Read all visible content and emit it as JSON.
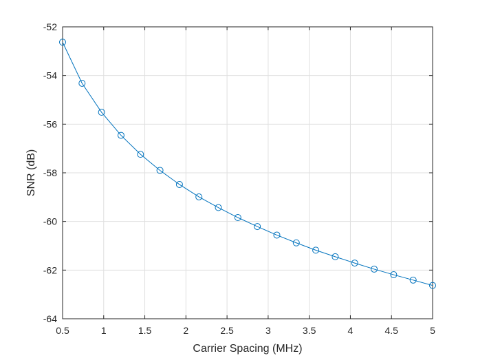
{
  "chart_data": {
    "type": "line",
    "title": "",
    "xlabel": "Carrier Spacing (MHz)",
    "ylabel": "SNR (dB)",
    "xlim": [
      0.5,
      5
    ],
    "ylim": [
      -64,
      -52
    ],
    "xticks": [
      "0.5",
      "1",
      "1.5",
      "2",
      "2.5",
      "3",
      "3.5",
      "4",
      "4.5",
      "5"
    ],
    "yticks": [
      "-64",
      "-62",
      "-60",
      "-58",
      "-56",
      "-54",
      "-52"
    ],
    "grid": true,
    "marker": "circle",
    "line_color": "#0072BD",
    "series": [
      {
        "x": [
          0.5,
          0.7368,
          0.9737,
          1.2105,
          1.4474,
          1.6842,
          1.9211,
          2.1579,
          2.3947,
          2.6316,
          2.8684,
          3.1053,
          3.3421,
          3.5789,
          3.8158,
          4.0526,
          4.2895,
          4.5263,
          4.7632,
          5.0
        ],
        "y": [
          -52.63,
          -54.32,
          -55.51,
          -56.46,
          -57.24,
          -57.9,
          -58.48,
          -58.99,
          -59.43,
          -59.84,
          -60.21,
          -60.56,
          -60.88,
          -61.18,
          -61.45,
          -61.71,
          -61.96,
          -62.19,
          -62.41,
          -62.63
        ]
      }
    ]
  }
}
